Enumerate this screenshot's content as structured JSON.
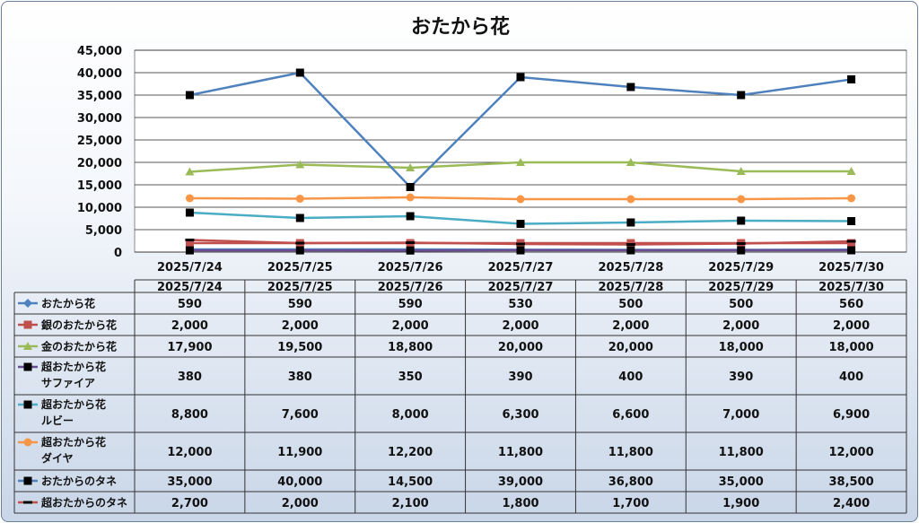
{
  "chart_data": {
    "type": "line",
    "title": "おたから花",
    "categories": [
      "2025/7/24",
      "2025/7/25",
      "2025/7/26",
      "2025/7/27",
      "2025/7/28",
      "2025/7/29",
      "2025/7/30"
    ],
    "ylim": [
      0,
      45000
    ],
    "yticks": [
      "0",
      "5,000",
      "10,000",
      "15,000",
      "20,000",
      "25,000",
      "30,000",
      "35,000",
      "40,000",
      "45,000"
    ],
    "grid": true,
    "legend": "data-table",
    "series": [
      {
        "name": [
          "おたから花"
        ],
        "color": "#4f81bd",
        "marker": "diamond",
        "values": [
          590,
          590,
          590,
          530,
          500,
          500,
          560
        ],
        "labels": [
          "590",
          "590",
          "590",
          "530",
          "500",
          "500",
          "560"
        ]
      },
      {
        "name": [
          "銀のおたから花"
        ],
        "color": "#c0504d",
        "marker": "square",
        "values": [
          2000,
          2000,
          2000,
          2000,
          2000,
          2000,
          2000
        ],
        "labels": [
          "2,000",
          "2,000",
          "2,000",
          "2,000",
          "2,000",
          "2,000",
          "2,000"
        ]
      },
      {
        "name": [
          "金のおたから花"
        ],
        "color": "#9bbb59",
        "marker": "triangle",
        "values": [
          17900,
          19500,
          18800,
          20000,
          20000,
          18000,
          18000
        ],
        "labels": [
          "17,900",
          "19,500",
          "18,800",
          "20,000",
          "20,000",
          "18,000",
          "18,000"
        ]
      },
      {
        "name": [
          "超おたから花",
          "サファイア"
        ],
        "color": "#6a4c93",
        "marker": "blacksquare",
        "values": [
          380,
          380,
          350,
          390,
          400,
          390,
          400
        ],
        "labels": [
          "380",
          "380",
          "350",
          "390",
          "400",
          "390",
          "400"
        ]
      },
      {
        "name": [
          "超おたから花",
          "ルビー"
        ],
        "color": "#4bacc6",
        "marker": "blacksquare",
        "values": [
          8800,
          7600,
          8000,
          6300,
          6600,
          7000,
          6900
        ],
        "labels": [
          "8,800",
          "7,600",
          "8,000",
          "6,300",
          "6,600",
          "7,000",
          "6,900"
        ]
      },
      {
        "name": [
          "超おたから花",
          "ダイヤ"
        ],
        "color": "#f79646",
        "marker": "circle",
        "values": [
          12000,
          11900,
          12200,
          11800,
          11800,
          11800,
          12000
        ],
        "labels": [
          "12,000",
          "11,900",
          "12,200",
          "11,800",
          "11,800",
          "11,800",
          "12,000"
        ]
      },
      {
        "name": [
          "おたからのタネ"
        ],
        "color": "#4f81bd",
        "marker": "blacksquare",
        "values": [
          35000,
          40000,
          14500,
          39000,
          36800,
          35000,
          38500
        ],
        "labels": [
          "35,000",
          "40,000",
          "14,500",
          "39,000",
          "36,800",
          "35,000",
          "38,500"
        ]
      },
      {
        "name": [
          "超おたからのタネ"
        ],
        "color": "#c0504d",
        "marker": "dash",
        "values": [
          2700,
          2000,
          2100,
          1800,
          1700,
          1900,
          2400
        ],
        "labels": [
          "2,700",
          "2,000",
          "2,100",
          "1,800",
          "1,700",
          "1,900",
          "2,400"
        ]
      }
    ]
  }
}
